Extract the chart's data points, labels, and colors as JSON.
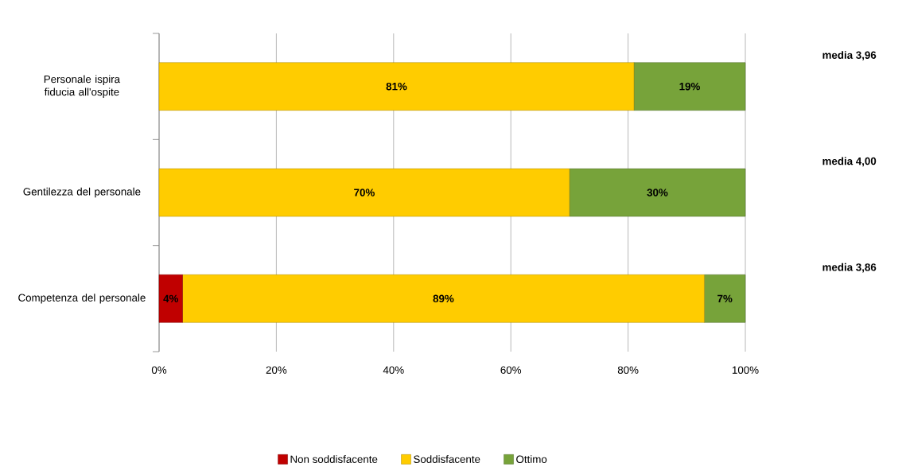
{
  "chart_data": {
    "type": "bar",
    "orientation": "horizontal",
    "stacked": true,
    "categories": [
      "Personale ispira fiducia all'ospite",
      "Gentilezza del personale",
      "Competenza del personale"
    ],
    "series": [
      {
        "name": "Non soddisfacente",
        "color": "#c00000",
        "values": [
          0,
          0,
          4
        ],
        "value_labels": [
          null,
          null,
          "4%"
        ]
      },
      {
        "name": "Soddisfacente",
        "color": "#ffcc00",
        "values": [
          81,
          70,
          89
        ],
        "value_labels": [
          "81%",
          "70%",
          "89%"
        ]
      },
      {
        "name": "Ottimo",
        "color": "#77a33a",
        "values": [
          19,
          30,
          7
        ],
        "value_labels": [
          "19%",
          "30%",
          "7%"
        ]
      }
    ],
    "xlim": [
      0,
      100
    ],
    "xticks": [
      {
        "value": 0,
        "label": "0%"
      },
      {
        "value": 20,
        "label": "20%"
      },
      {
        "value": 40,
        "label": "40%"
      },
      {
        "value": 60,
        "label": "60%"
      },
      {
        "value": 80,
        "label": "80%"
      },
      {
        "value": 100,
        "label": "100%"
      }
    ],
    "grid": "x",
    "legend": "bottom",
    "annotations": [
      "media  3,96",
      "media  4,00",
      "media  3,86"
    ]
  }
}
